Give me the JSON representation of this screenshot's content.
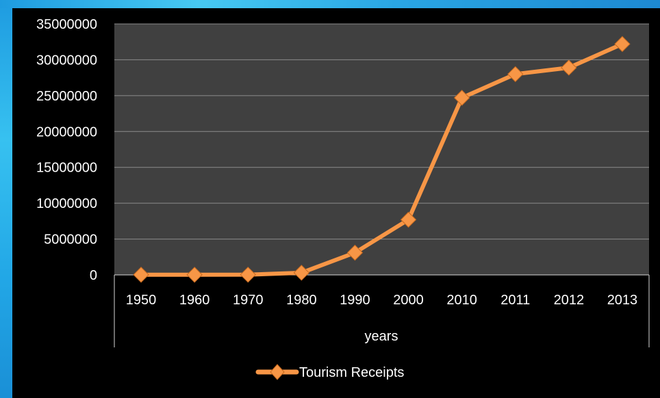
{
  "chart_data": {
    "type": "line",
    "categories": [
      "1950",
      "1960",
      "1970",
      "1980",
      "1990",
      "2000",
      "2010",
      "2011",
      "2012",
      "2013"
    ],
    "series": [
      {
        "name": "Tourism Receipts",
        "values": [
          25000,
          20000,
          30000,
          300000,
          3100000,
          7700000,
          24700000,
          28000000,
          28900000,
          32200000
        ],
        "color": "#f79646"
      }
    ],
    "xlabel": "years",
    "ylabel": "",
    "ylim": [
      0,
      35000000
    ],
    "yticks": [
      "0",
      "5000000",
      "10000000",
      "15000000",
      "20000000",
      "25000000",
      "30000000",
      "35000000"
    ],
    "grid": true,
    "legend_position": "bottom",
    "plot_background": "#404040",
    "page_background": "#000000"
  }
}
